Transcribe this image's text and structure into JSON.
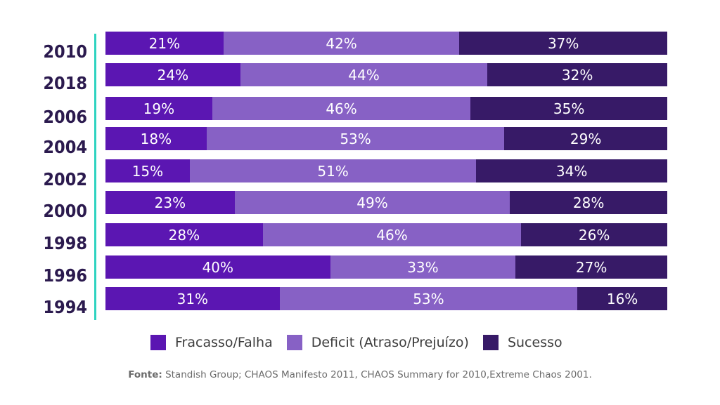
{
  "chart_data": {
    "type": "bar",
    "orientation": "horizontal",
    "stacked": true,
    "categories": [
      "2010",
      "2018",
      "2006",
      "2004",
      "2002",
      "2000",
      "1998",
      "1996",
      "1994"
    ],
    "series": [
      {
        "name": "Fracasso/Falha",
        "values": [
          21,
          24,
          19,
          18,
          15,
          23,
          28,
          40,
          31
        ],
        "labels": [
          "21%",
          "24%",
          "19%",
          "18%",
          "15%",
          "23%",
          "28%",
          "40%",
          "31%"
        ],
        "color": "#5b16b2"
      },
      {
        "name": "Deficit (Atraso/Prejuízo)",
        "values": [
          42,
          44,
          46,
          53,
          51,
          49,
          46,
          33,
          53
        ],
        "labels": [
          "42%",
          "44%",
          "46%",
          "53%",
          "51%",
          "49%",
          "46%",
          "33%",
          "53%"
        ],
        "color": "#8761c5"
      },
      {
        "name": "Sucesso",
        "values": [
          37,
          32,
          35,
          29,
          34,
          28,
          26,
          27,
          16
        ],
        "labels": [
          "37%",
          "32%",
          "35%",
          "29%",
          "34%",
          "28%",
          "26%",
          "27%",
          "16%"
        ],
        "color": "#371a67"
      }
    ],
    "legend_position": "bottom",
    "grid": false
  },
  "colors": {
    "axis_line": "#2ed3c0",
    "year_text": "#2b1a4e"
  },
  "source": {
    "prefix": "Fonte:",
    "text": " Standish Group; CHAOS Manifesto 2011, CHAOS Summary for 2010,Extreme Chaos 2001."
  }
}
